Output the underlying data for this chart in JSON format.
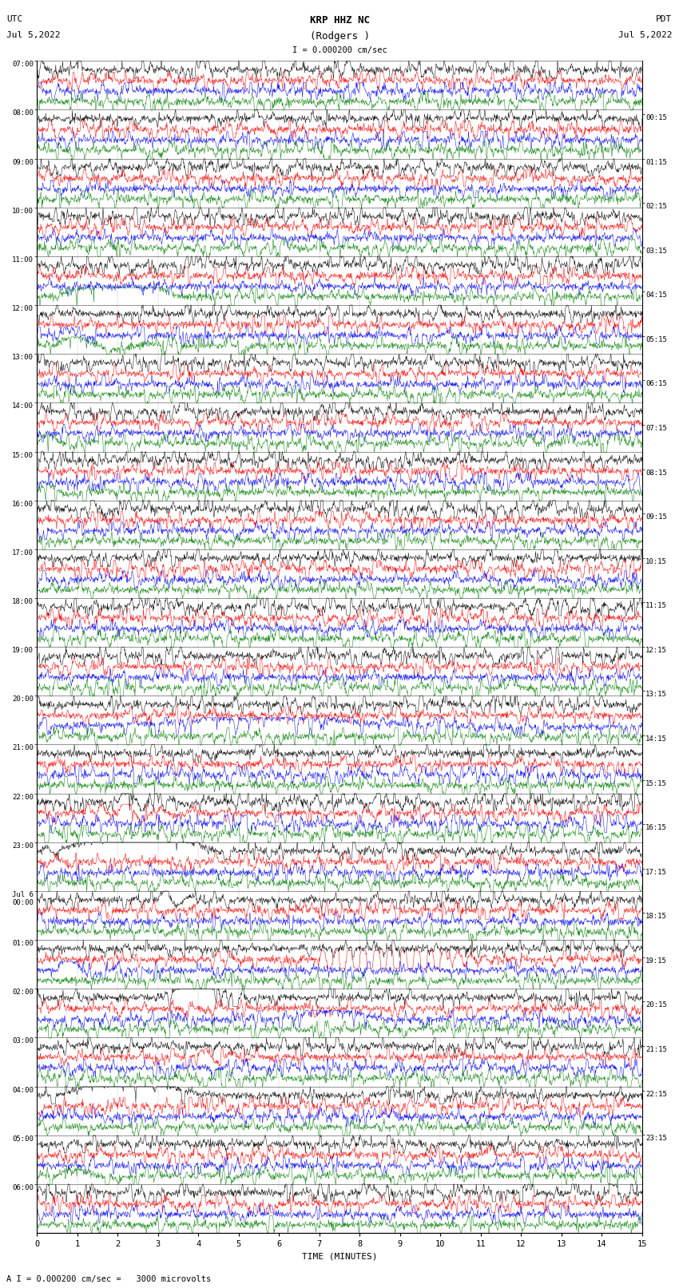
{
  "title_line1": "KRP HHZ NC",
  "title_line2": "(Rodgers )",
  "scale_text": "I = 0.000200 cm/sec",
  "footer_text": "A I = 0.000200 cm/sec =   3000 microvolts",
  "utc_label": "UTC",
  "utc_date": "Jul 5,2022",
  "pdt_label": "PDT",
  "pdt_date": "Jul 5,2022",
  "xlabel": "TIME (MINUTES)",
  "left_times": [
    "07:00",
    "08:00",
    "09:00",
    "10:00",
    "11:00",
    "12:00",
    "13:00",
    "14:00",
    "15:00",
    "16:00",
    "17:00",
    "18:00",
    "19:00",
    "20:00",
    "21:00",
    "22:00",
    "23:00",
    "Jul 6\n00:00",
    "01:00",
    "02:00",
    "03:00",
    "04:00",
    "05:00",
    "06:00"
  ],
  "right_times": [
    "00:15",
    "01:15",
    "02:15",
    "03:15",
    "04:15",
    "05:15",
    "06:15",
    "07:15",
    "08:15",
    "09:15",
    "10:15",
    "11:15",
    "12:15",
    "13:15",
    "14:15",
    "15:15",
    "16:15",
    "17:15",
    "18:15",
    "19:15",
    "20:15",
    "21:15",
    "22:15",
    "23:15"
  ],
  "num_rows": 24,
  "traces_per_row": 4,
  "colors": [
    "black",
    "red",
    "blue",
    "green"
  ],
  "bg_color": "#ffffff",
  "minutes": 15,
  "samples_per_trace": 1500,
  "xlim": [
    0,
    15
  ],
  "figsize": [
    8.5,
    16.13
  ],
  "dpi": 100,
  "lw": 0.35
}
